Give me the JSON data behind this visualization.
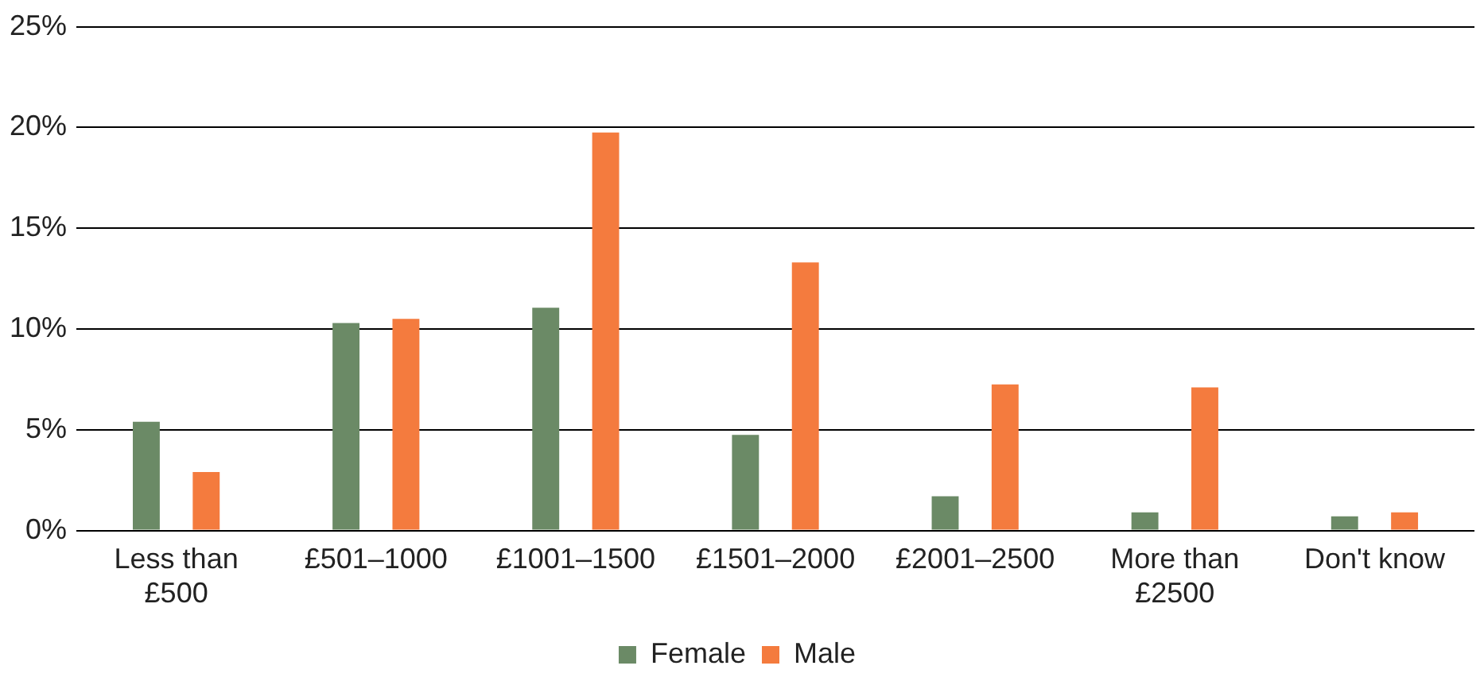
{
  "chart_data": {
    "type": "bar",
    "categories": [
      "Less than £500",
      "£501–1000",
      "£1001–1500",
      "£1501–2000",
      "£2001–2500",
      "More than £2500",
      "Don't know"
    ],
    "series": [
      {
        "name": "Female",
        "color": "#6b8a66",
        "values": [
          5.4,
          10.3,
          11.05,
          4.75,
          1.7,
          0.9,
          0.7
        ]
      },
      {
        "name": "Male",
        "color": "#f47b3e",
        "values": [
          2.9,
          10.5,
          19.75,
          13.3,
          7.25,
          7.1,
          0.9
        ]
      }
    ],
    "ylim": [
      0,
      25
    ],
    "yticks": [
      {
        "value": 0,
        "label": "0%"
      },
      {
        "value": 5,
        "label": "5%"
      },
      {
        "value": 10,
        "label": "10%"
      },
      {
        "value": 15,
        "label": "15%"
      },
      {
        "value": 20,
        "label": "20%"
      },
      {
        "value": 25,
        "label": "25%"
      }
    ],
    "grid": "y",
    "legend": "bottom"
  }
}
